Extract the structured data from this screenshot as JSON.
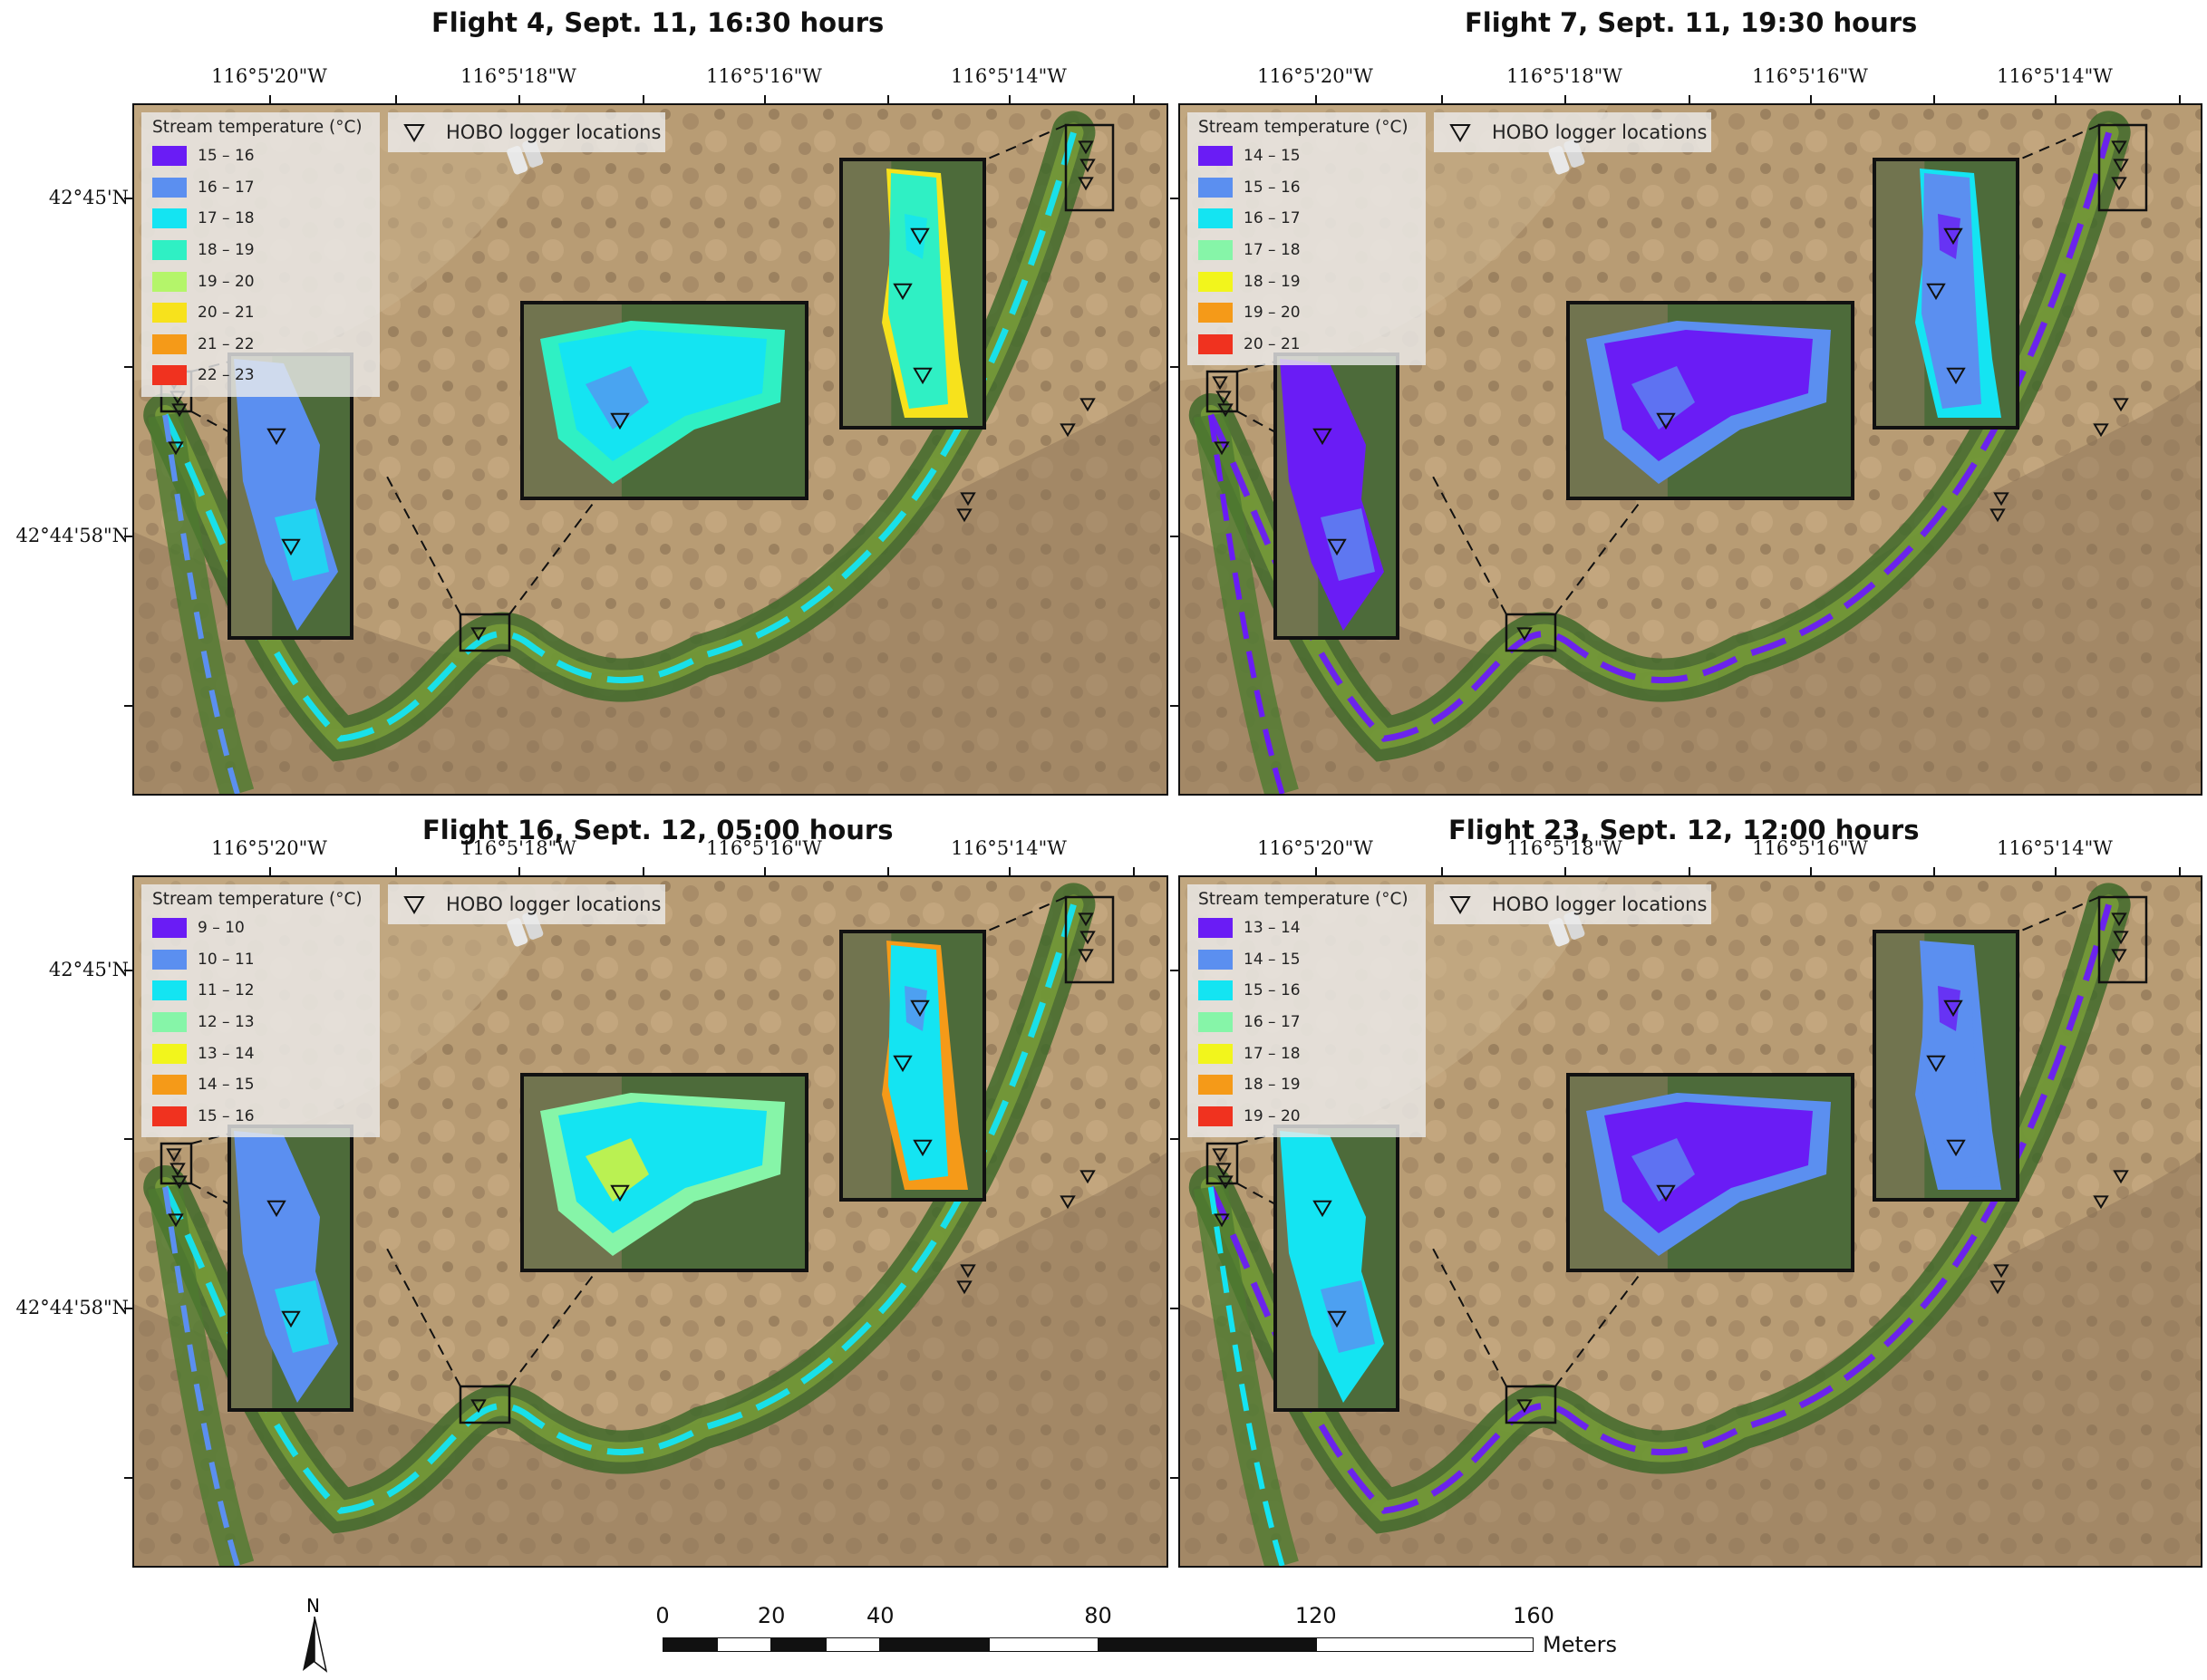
{
  "panels": [
    {
      "title": "Flight 4, Sept. 11, 16:30 hours",
      "legend_title": "Stream temperature (°C)",
      "legend": [
        {
          "label": "15 – 16",
          "color": "#6a1cf5"
        },
        {
          "label": "16 – 17",
          "color": "#5b8ff0"
        },
        {
          "label": "17 – 18",
          "color": "#14e4f2"
        },
        {
          "label": "18 – 19",
          "color": "#2ff0c4"
        },
        {
          "label": "19 – 20",
          "color": "#b4f56a"
        },
        {
          "label": "20 – 21",
          "color": "#f7e21c"
        },
        {
          "label": "21 – 22",
          "color": "#f59a18"
        },
        {
          "label": "22 – 23",
          "color": "#f0321f"
        }
      ],
      "hobo_label": "HOBO logger locations",
      "lon_labels": [
        "116°5'20\"W",
        "116°5'18\"W",
        "116°5'16\"W",
        "116°5'14\"W"
      ],
      "lat_labels": [
        "42°45'N",
        "42°44'58\"N"
      ],
      "insets": {
        "left": {
          "base": "#5b8ff0",
          "accent": "#14e4f2"
        },
        "center": {
          "base": "#14e4f2",
          "accent": "#5b8ff0",
          "edge": "#2ff0c4"
        },
        "right": {
          "base": "#2ff0c4",
          "accent": "#14e4f2",
          "edge": "#f7e21c"
        }
      }
    },
    {
      "title": "Flight 7, Sept. 11, 19:30 hours",
      "legend_title": "Stream temperature (°C)",
      "legend": [
        {
          "label": "14 – 15",
          "color": "#6a1cf5"
        },
        {
          "label": "15 – 16",
          "color": "#5b8ff0"
        },
        {
          "label": "16 – 17",
          "color": "#14e4f2"
        },
        {
          "label": "17 – 18",
          "color": "#86f5a8"
        },
        {
          "label": "18 – 19",
          "color": "#f2f51c"
        },
        {
          "label": "19 – 20",
          "color": "#f59a18"
        },
        {
          "label": "20 – 21",
          "color": "#f0321f"
        }
      ],
      "hobo_label": "HOBO logger locations",
      "lon_labels": [
        "116°5'20\"W",
        "116°5'18\"W",
        "116°5'16\"W",
        "116°5'14\"W"
      ],
      "lat_labels": [
        "42°45'N",
        "42°44'58\"N"
      ],
      "insets": {
        "left": {
          "base": "#6a1cf5",
          "accent": "#5b8ff0"
        },
        "center": {
          "base": "#6a1cf5",
          "accent": "#5b8ff0",
          "edge": "#5b8ff0"
        },
        "right": {
          "base": "#5b8ff0",
          "accent": "#6a1cf5",
          "edge": "#14e4f2"
        }
      }
    },
    {
      "title": "Flight 16, Sept. 12, 05:00 hours",
      "legend_title": "Stream temperature (°C)",
      "legend": [
        {
          "label": "9 – 10",
          "color": "#6a1cf5"
        },
        {
          "label": "10 – 11",
          "color": "#5b8ff0"
        },
        {
          "label": "11 – 12",
          "color": "#14e4f2"
        },
        {
          "label": "12 – 13",
          "color": "#86f5a8"
        },
        {
          "label": "13 – 14",
          "color": "#f2f51c"
        },
        {
          "label": "14 – 15",
          "color": "#f59a18"
        },
        {
          "label": "15 – 16",
          "color": "#f0321f"
        }
      ],
      "hobo_label": "HOBO logger locations",
      "lon_labels": [
        "116°5'20\"W",
        "116°5'18\"W",
        "116°5'16\"W",
        "116°5'14\"W"
      ],
      "lat_labels": [
        "42°45'N",
        "42°44'58\"N"
      ],
      "insets": {
        "left": {
          "base": "#5b8ff0",
          "accent": "#14e4f2"
        },
        "center": {
          "base": "#14e4f2",
          "accent": "#f2f51c",
          "edge": "#86f5a8"
        },
        "right": {
          "base": "#14e4f2",
          "accent": "#5b8ff0",
          "edge": "#f59a18"
        }
      }
    },
    {
      "title": "Flight 23, Sept. 12, 12:00 hours",
      "legend_title": "Stream temperature (°C)",
      "legend": [
        {
          "label": "13 – 14",
          "color": "#6a1cf5"
        },
        {
          "label": "14 – 15",
          "color": "#5b8ff0"
        },
        {
          "label": "15 – 16",
          "color": "#14e4f2"
        },
        {
          "label": "16 – 17",
          "color": "#86f5a8"
        },
        {
          "label": "17 – 18",
          "color": "#f2f51c"
        },
        {
          "label": "18 – 19",
          "color": "#f59a18"
        },
        {
          "label": "19 – 20",
          "color": "#f0321f"
        }
      ],
      "hobo_label": "HOBO logger locations",
      "lon_labels": [
        "116°5'20\"W",
        "116°5'18\"W",
        "116°5'16\"W",
        "116°5'14\"W"
      ],
      "lat_labels": [
        "42°45'N",
        "42°44'58\"N"
      ],
      "insets": {
        "left": {
          "base": "#14e4f2",
          "accent": "#5b8ff0"
        },
        "center": {
          "base": "#6a1cf5",
          "accent": "#5b8ff0",
          "edge": "#5b8ff0"
        },
        "right": {
          "base": "#5b8ff0",
          "accent": "#6a1cf5",
          "edge": "#5b8ff0"
        }
      }
    }
  ],
  "north_label": "N",
  "scale_bar": {
    "labels": [
      "0",
      "20",
      "40",
      "80",
      "120",
      "160"
    ],
    "unit": "Meters"
  }
}
